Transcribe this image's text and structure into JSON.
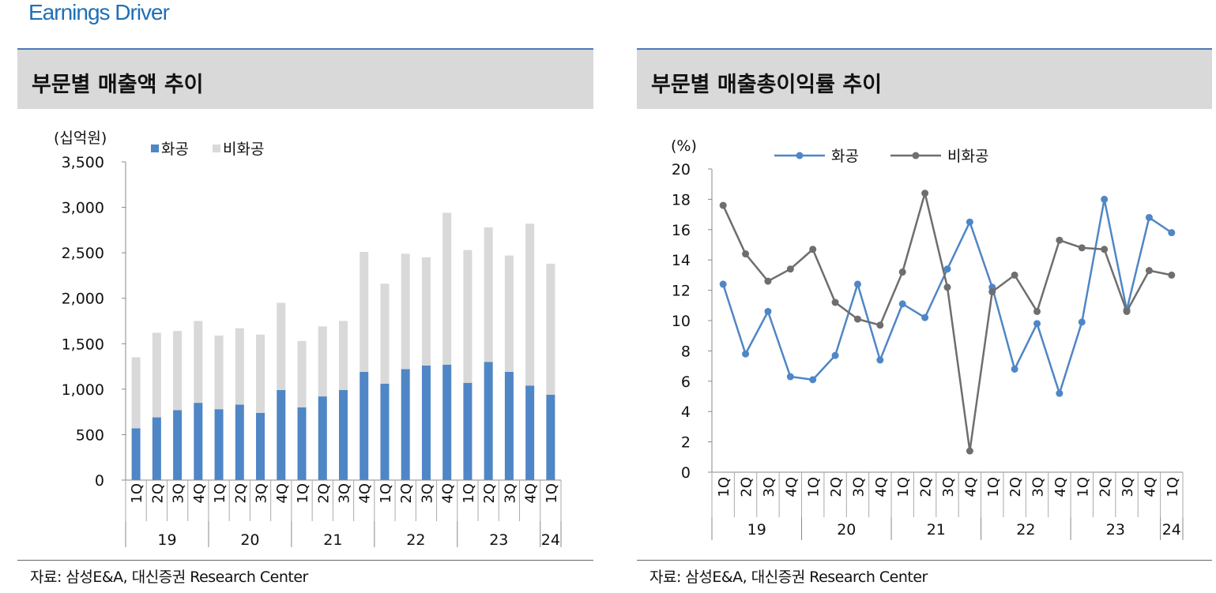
{
  "page": {
    "title": "Earnings Driver"
  },
  "panels": {
    "left": {
      "title": "부문별 매출액 추이",
      "source": "자료: 삼성E&A, 대신증권 Research Center"
    },
    "right": {
      "title": "부문별 매출총이익률 추이",
      "source": "자료: 삼성E&A, 대신증권 Research Center"
    }
  },
  "chart_data": [
    {
      "type": "bar",
      "stacked": true,
      "title": "부문별 매출액 추이",
      "unit_label": "(십억원)",
      "categories": [
        "1Q",
        "2Q",
        "3Q",
        "4Q",
        "1Q",
        "2Q",
        "3Q",
        "4Q",
        "1Q",
        "2Q",
        "3Q",
        "4Q",
        "1Q",
        "2Q",
        "3Q",
        "4Q",
        "1Q",
        "2Q",
        "3Q",
        "4Q",
        "1Q"
      ],
      "year_groups": [
        {
          "label": "19",
          "count": 4
        },
        {
          "label": "20",
          "count": 4
        },
        {
          "label": "21",
          "count": 4
        },
        {
          "label": "22",
          "count": 4
        },
        {
          "label": "23",
          "count": 4
        },
        {
          "label": "24",
          "count": 1
        }
      ],
      "series": [
        {
          "name": "화공",
          "color": "#4f86c6",
          "values": [
            570,
            690,
            770,
            850,
            780,
            830,
            740,
            990,
            800,
            920,
            990,
            1190,
            1060,
            1220,
            1260,
            1270,
            1070,
            1300,
            1190,
            1040,
            940
          ]
        },
        {
          "name": "비화공",
          "color": "#d9d9d9",
          "values": [
            780,
            930,
            870,
            900,
            810,
            840,
            860,
            960,
            730,
            770,
            760,
            1320,
            1100,
            1270,
            1190,
            1670,
            1460,
            1480,
            1280,
            1780,
            1440
          ]
        }
      ],
      "ylim": [
        0,
        3500
      ],
      "yticks": [
        0,
        500,
        1000,
        1500,
        2000,
        2500,
        3000,
        3500
      ],
      "ytick_labels": [
        "0",
        "500",
        "1,000",
        "1,500",
        "2,000",
        "2,500",
        "3,000",
        "3,500"
      ],
      "legend": "top-left"
    },
    {
      "type": "line",
      "title": "부문별 매출총이익률 추이",
      "unit_label": "(%)",
      "categories": [
        "1Q",
        "2Q",
        "3Q",
        "4Q",
        "1Q",
        "2Q",
        "3Q",
        "4Q",
        "1Q",
        "2Q",
        "3Q",
        "4Q",
        "1Q",
        "2Q",
        "3Q",
        "4Q",
        "1Q",
        "2Q",
        "3Q",
        "4Q",
        "1Q"
      ],
      "year_groups": [
        {
          "label": "19",
          "count": 4
        },
        {
          "label": "20",
          "count": 4
        },
        {
          "label": "21",
          "count": 4
        },
        {
          "label": "22",
          "count": 4
        },
        {
          "label": "23",
          "count": 4
        },
        {
          "label": "24",
          "count": 1
        }
      ],
      "series": [
        {
          "name": "화공",
          "color": "#4f86c6",
          "values": [
            12.4,
            7.8,
            10.6,
            6.3,
            6.1,
            7.7,
            12.4,
            7.4,
            11.1,
            10.2,
            13.4,
            16.5,
            12.2,
            6.8,
            9.8,
            5.2,
            9.9,
            18.0,
            10.7,
            16.8,
            15.8
          ]
        },
        {
          "name": "비화공",
          "color": "#6e6e6e",
          "values": [
            17.6,
            14.4,
            12.6,
            13.4,
            14.7,
            11.2,
            10.1,
            9.7,
            13.2,
            18.4,
            12.2,
            1.4,
            11.9,
            13.0,
            10.6,
            15.3,
            14.8,
            14.7,
            10.6,
            13.3,
            13.0
          ]
        }
      ],
      "ylim": [
        0,
        20
      ],
      "yticks": [
        0,
        2,
        4,
        6,
        8,
        10,
        12,
        14,
        16,
        18,
        20
      ],
      "ytick_labels": [
        "0",
        "2",
        "4",
        "6",
        "8",
        "10",
        "12",
        "14",
        "16",
        "18",
        "20"
      ],
      "legend": "top"
    }
  ]
}
